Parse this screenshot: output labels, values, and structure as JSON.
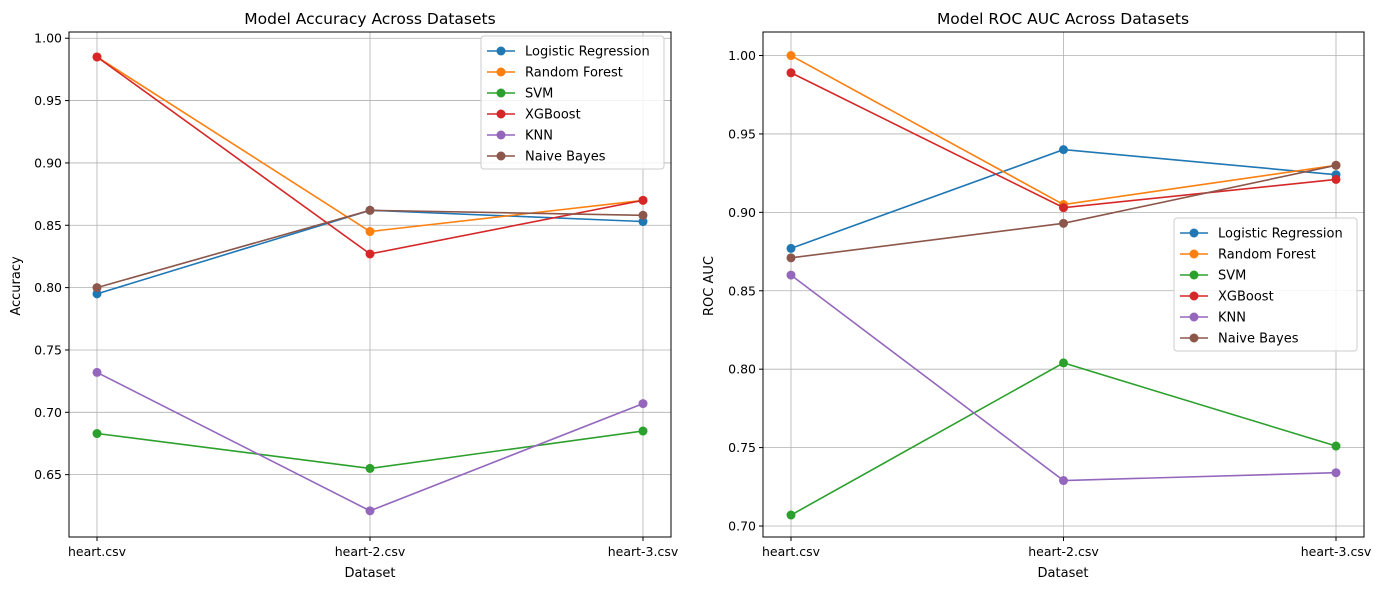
{
  "chart_data": [
    {
      "type": "line",
      "title": "Model Accuracy Across Datasets",
      "xlabel": "Dataset",
      "ylabel": "Accuracy",
      "categories": [
        "heart.csv",
        "heart-2.csv",
        "heart-3.csv"
      ],
      "ylim": [
        0.6,
        1.005
      ],
      "yticks": [
        0.65,
        0.7,
        0.75,
        0.8,
        0.85,
        0.9,
        0.95,
        1.0
      ],
      "ytick_labels": [
        "0.65",
        "0.70",
        "0.75",
        "0.80",
        "0.85",
        "0.90",
        "0.95",
        "1.00"
      ],
      "grid": true,
      "legend_position": "top-right",
      "series": [
        {
          "name": "Logistic Regression",
          "color": "#1f77b4",
          "values": [
            0.795,
            0.862,
            0.853
          ]
        },
        {
          "name": "Random Forest",
          "color": "#ff7f0e",
          "values": [
            0.985,
            0.845,
            0.87
          ]
        },
        {
          "name": "SVM",
          "color": "#2ca02c",
          "values": [
            0.683,
            0.655,
            0.685
          ]
        },
        {
          "name": "XGBoost",
          "color": "#d62728",
          "values": [
            0.985,
            0.827,
            0.87
          ]
        },
        {
          "name": "KNN",
          "color": "#9467bd",
          "values": [
            0.732,
            0.621,
            0.707
          ]
        },
        {
          "name": "Naive Bayes",
          "color": "#8c564b",
          "values": [
            0.8,
            0.862,
            0.858
          ]
        }
      ]
    },
    {
      "type": "line",
      "title": "Model ROC AUC Across Datasets",
      "xlabel": "Dataset",
      "ylabel": "ROC AUC",
      "categories": [
        "heart.csv",
        "heart-2.csv",
        "heart-3.csv"
      ],
      "ylim": [
        0.693,
        1.015
      ],
      "yticks": [
        0.7,
        0.75,
        0.8,
        0.85,
        0.9,
        0.95,
        1.0
      ],
      "ytick_labels": [
        "0.70",
        "0.75",
        "0.80",
        "0.85",
        "0.90",
        "0.95",
        "1.00"
      ],
      "grid": true,
      "legend_position": "center-right",
      "series": [
        {
          "name": "Logistic Regression",
          "color": "#1f77b4",
          "values": [
            0.877,
            0.94,
            0.924
          ]
        },
        {
          "name": "Random Forest",
          "color": "#ff7f0e",
          "values": [
            1.0,
            0.905,
            0.93
          ]
        },
        {
          "name": "SVM",
          "color": "#2ca02c",
          "values": [
            0.707,
            0.804,
            0.751
          ]
        },
        {
          "name": "XGBoost",
          "color": "#d62728",
          "values": [
            0.989,
            0.903,
            0.921
          ]
        },
        {
          "name": "KNN",
          "color": "#9467bd",
          "values": [
            0.86,
            0.729,
            0.734
          ]
        },
        {
          "name": "Naive Bayes",
          "color": "#8c564b",
          "values": [
            0.871,
            0.893,
            0.93
          ]
        }
      ]
    }
  ]
}
